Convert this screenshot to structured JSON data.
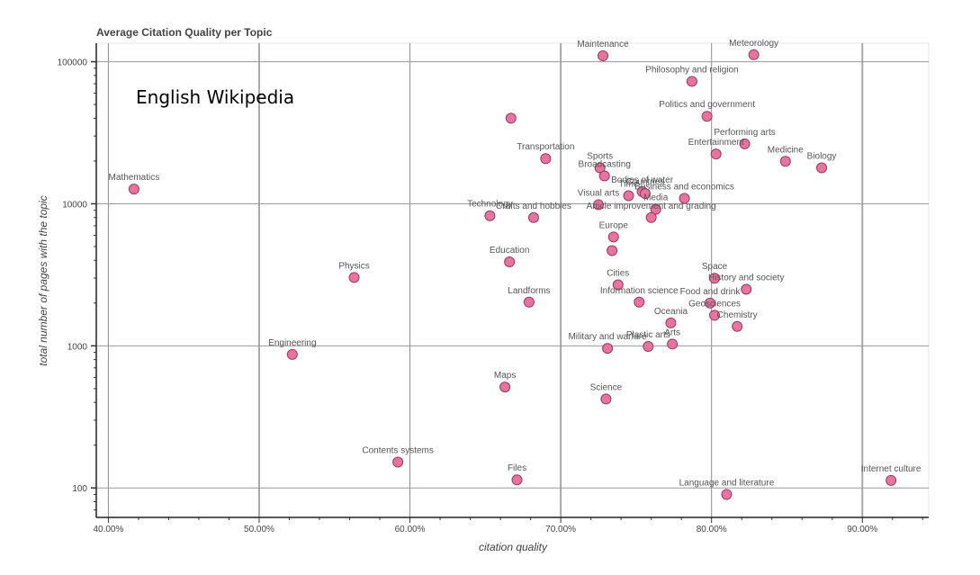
{
  "chart_data": {
    "type": "scatter",
    "title": "Average Citation Quality per Topic",
    "annotation": "English Wikipedia",
    "xlabel": "citation quality",
    "ylabel": "total number of pages with the topic",
    "x_scale": "linear",
    "y_scale": "log",
    "xlim": [
      39.2,
      94.4
    ],
    "ylim": [
      62,
      135000
    ],
    "x_ticks": [
      40,
      50,
      60,
      70,
      80,
      90
    ],
    "x_tick_labels": [
      "40.00%",
      "50.00%",
      "60.00%",
      "70.00%",
      "80.00%",
      "90.00%"
    ],
    "y_ticks": [
      100,
      1000,
      10000,
      100000
    ],
    "y_tick_labels": [
      "100",
      "1000",
      "10000",
      "100000"
    ],
    "grid": true,
    "marker_color": "#e8739f",
    "marker_edge": "#9a3a5e",
    "points": [
      {
        "label": "Mathematics",
        "x": 41.7,
        "y": 12700
      },
      {
        "label": "Physics",
        "x": 56.3,
        "y": 3030
      },
      {
        "label": "Engineering",
        "x": 52.2,
        "y": 870
      },
      {
        "label": "Contents systems",
        "x": 59.2,
        "y": 152
      },
      {
        "label": "Maps",
        "x": 66.3,
        "y": 513
      },
      {
        "label": "Files",
        "x": 67.1,
        "y": 114
      },
      {
        "label": "Science",
        "x": 73.0,
        "y": 423
      },
      {
        "label": "",
        "x": 66.7,
        "y": 40000
      },
      {
        "label": "Maintenance",
        "x": 72.8,
        "y": 110000
      },
      {
        "label": "Meteorology",
        "x": 82.8,
        "y": 112000
      },
      {
        "label": "Philosophy and religion",
        "x": 78.7,
        "y": 72700
      },
      {
        "label": "Politics and government",
        "x": 79.7,
        "y": 41300
      },
      {
        "label": "Performing arts",
        "x": 82.2,
        "y": 26400
      },
      {
        "label": "Entertainment",
        "x": 80.3,
        "y": 22400
      },
      {
        "label": "Medicine",
        "x": 84.9,
        "y": 19900
      },
      {
        "label": "Biology",
        "x": 87.3,
        "y": 17900
      },
      {
        "label": "Transportation",
        "x": 69.0,
        "y": 20800
      },
      {
        "label": "Sports",
        "x": 72.6,
        "y": 17900
      },
      {
        "label": "Broadcasting",
        "x": 72.9,
        "y": 15700
      },
      {
        "label": "Bodies of water",
        "x": 75.4,
        "y": 12200
      },
      {
        "label": "Time",
        "x": 74.5,
        "y": 11400
      },
      {
        "label": "Business and economics",
        "x": 78.2,
        "y": 10900
      },
      {
        "label": "Countries",
        "x": 75.6,
        "y": 11800
      },
      {
        "label": "Visual arts",
        "x": 72.5,
        "y": 9850
      },
      {
        "label": "Media",
        "x": 76.3,
        "y": 9140
      },
      {
        "label": "Article improvement and grading",
        "x": 76.0,
        "y": 8000
      },
      {
        "label": "Technology",
        "x": 65.3,
        "y": 8240
      },
      {
        "label": "Crafts and hobbies",
        "x": 68.2,
        "y": 8000
      },
      {
        "label": "Europe",
        "x": 73.5,
        "y": 5840
      },
      {
        "label": "",
        "x": 73.4,
        "y": 4680
      },
      {
        "label": "Education",
        "x": 66.6,
        "y": 3900
      },
      {
        "label": "Landforms",
        "x": 67.9,
        "y": 2030
      },
      {
        "label": "Cities",
        "x": 73.8,
        "y": 2690
      },
      {
        "label": "Information science",
        "x": 75.2,
        "y": 2030
      },
      {
        "label": "Space",
        "x": 80.2,
        "y": 2990
      },
      {
        "label": "History and society",
        "x": 82.3,
        "y": 2500
      },
      {
        "label": "Food and drink",
        "x": 79.9,
        "y": 2000
      },
      {
        "label": "Geosciences",
        "x": 80.2,
        "y": 1640
      },
      {
        "label": "Chemistry",
        "x": 81.7,
        "y": 1370
      },
      {
        "label": "Oceania",
        "x": 77.3,
        "y": 1450
      },
      {
        "label": "Arts",
        "x": 77.4,
        "y": 1030
      },
      {
        "label": "Plastic arts",
        "x": 75.8,
        "y": 990
      },
      {
        "label": "Military and warfare",
        "x": 73.1,
        "y": 960
      },
      {
        "label": "Language and literature",
        "x": 81.0,
        "y": 90
      },
      {
        "label": "Internet culture",
        "x": 91.9,
        "y": 113
      }
    ]
  }
}
